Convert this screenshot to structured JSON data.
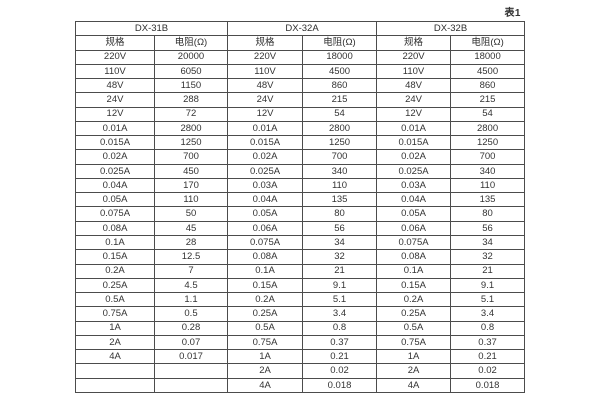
{
  "page": {
    "caption": "表1",
    "background_color": "#ffffff",
    "text_color": "#333333",
    "border_color": "#4c4c4c"
  },
  "table": {
    "groups": [
      {
        "name": "DX-31B",
        "spec_header": "规格",
        "resistance_header": "电阻(Ω)",
        "rows": [
          [
            "220V",
            "20000"
          ],
          [
            "110V",
            "6050"
          ],
          [
            "48V",
            "1150"
          ],
          [
            "24V",
            "288"
          ],
          [
            "12V",
            "72"
          ],
          [
            "0.01A",
            "2800"
          ],
          [
            "0.015A",
            "1250"
          ],
          [
            "0.02A",
            "700"
          ],
          [
            "0.025A",
            "450"
          ],
          [
            "0.04A",
            "170"
          ],
          [
            "0.05A",
            "110"
          ],
          [
            "0.075A",
            "50"
          ],
          [
            "0.08A",
            "45"
          ],
          [
            "0.1A",
            "28"
          ],
          [
            "0.15A",
            "12.5"
          ],
          [
            "0.2A",
            "7"
          ],
          [
            "0.25A",
            "4.5"
          ],
          [
            "0.5A",
            "1.1"
          ],
          [
            "0.75A",
            "0.5"
          ],
          [
            "1A",
            "0.28"
          ],
          [
            "2A",
            "0.07"
          ],
          [
            "4A",
            "0.017"
          ],
          [
            "",
            ""
          ],
          [
            "",
            ""
          ]
        ]
      },
      {
        "name": "DX-32A",
        "spec_header": "规格",
        "resistance_header": "电阻(Ω)",
        "rows": [
          [
            "220V",
            "18000"
          ],
          [
            "110V",
            "4500"
          ],
          [
            "48V",
            "860"
          ],
          [
            "24V",
            "215"
          ],
          [
            "12V",
            "54"
          ],
          [
            "0.01A",
            "2800"
          ],
          [
            "0.015A",
            "1250"
          ],
          [
            "0.02A",
            "700"
          ],
          [
            "0.025A",
            "340"
          ],
          [
            "0.03A",
            "110"
          ],
          [
            "0.04A",
            "135"
          ],
          [
            "0.05A",
            "80"
          ],
          [
            "0.06A",
            "56"
          ],
          [
            "0.075A",
            "34"
          ],
          [
            "0.08A",
            "32"
          ],
          [
            "0.1A",
            "21"
          ],
          [
            "0.15A",
            "9.1"
          ],
          [
            "0.2A",
            "5.1"
          ],
          [
            "0.25A",
            "3.4"
          ],
          [
            "0.5A",
            "0.8"
          ],
          [
            "0.75A",
            "0.37"
          ],
          [
            "1A",
            "0.21"
          ],
          [
            "2A",
            "0.02"
          ],
          [
            "4A",
            "0.018"
          ]
        ]
      },
      {
        "name": "DX-32B",
        "spec_header": "规格",
        "resistance_header": "电阻(Ω)",
        "rows": [
          [
            "220V",
            "18000"
          ],
          [
            "110V",
            "4500"
          ],
          [
            "48V",
            "860"
          ],
          [
            "24V",
            "215"
          ],
          [
            "12V",
            "54"
          ],
          [
            "0.01A",
            "2800"
          ],
          [
            "0.015A",
            "1250"
          ],
          [
            "0.02A",
            "700"
          ],
          [
            "0.025A",
            "340"
          ],
          [
            "0.03A",
            "110"
          ],
          [
            "0.04A",
            "135"
          ],
          [
            "0.05A",
            "80"
          ],
          [
            "0.06A",
            "56"
          ],
          [
            "0.075A",
            "34"
          ],
          [
            "0.08A",
            "32"
          ],
          [
            "0.1A",
            "21"
          ],
          [
            "0.15A",
            "9.1"
          ],
          [
            "0.2A",
            "5.1"
          ],
          [
            "0.25A",
            "3.4"
          ],
          [
            "0.5A",
            "0.8"
          ],
          [
            "0.75A",
            "0.37"
          ],
          [
            "1A",
            "0.21"
          ],
          [
            "2A",
            "0.02"
          ],
          [
            "4A",
            "0.018"
          ]
        ]
      }
    ]
  }
}
